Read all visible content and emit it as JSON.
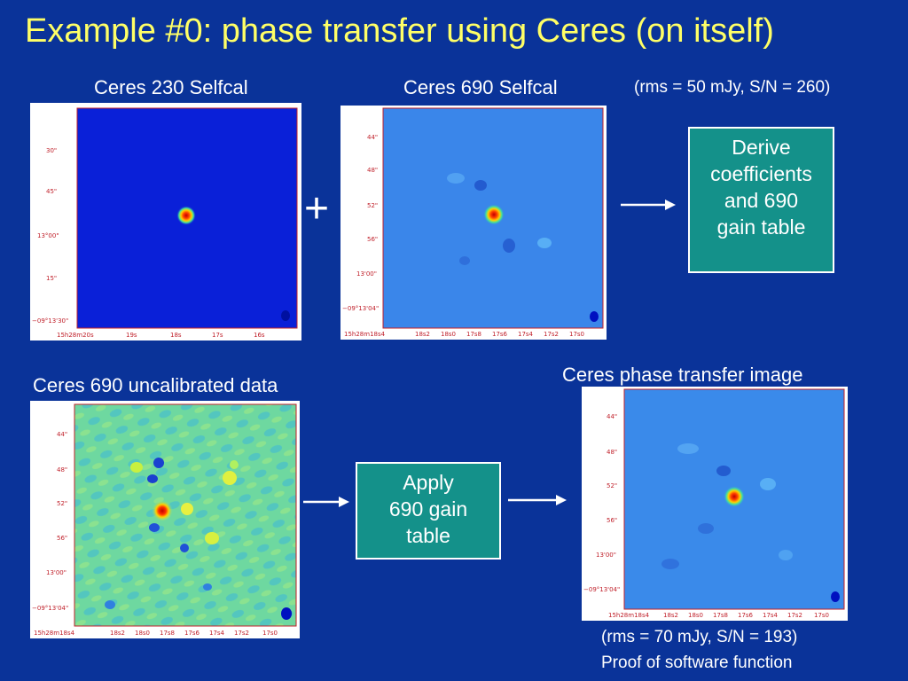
{
  "title": "Example #0:  phase transfer using Ceres (on itself)",
  "labels": {
    "ceres230": "Ceres 230 Selfcal",
    "ceres690": "Ceres 690 Selfcal",
    "uncal": "Ceres 690 uncalibrated data",
    "transfer": "Ceres phase transfer image"
  },
  "notes": {
    "rms_top": "(rms = 50 mJy, S/N = 260)",
    "rms_bottom": "(rms = 70 mJy, S/N = 193)",
    "proof": "Proof of software function"
  },
  "plus": "+",
  "boxes": {
    "derive": [
      "Derive",
      "coefficients",
      "and 690",
      "gain table"
    ],
    "apply": [
      "Apply",
      "690 gain",
      "table"
    ]
  },
  "axes": {
    "panel1": {
      "y": [
        "30\"",
        "45\"",
        "13°00\"",
        "15\"",
        "−09°13'30\""
      ],
      "x": [
        "15h28m20s",
        "19s",
        "18s",
        "17s",
        "16s"
      ]
    },
    "panel2": {
      "y": [
        "44\"",
        "48\"",
        "52\"",
        "56\"",
        "13'00\"",
        "−09°13'04\""
      ],
      "x": [
        "15h28m18s4",
        "18s2",
        "18s0",
        "17s8",
        "17s6",
        "17s4",
        "17s2",
        "17s0"
      ]
    },
    "panel3": {
      "y": [
        "44\"",
        "48\"",
        "52\"",
        "56\"",
        "13'00\"",
        "−09°13'04\""
      ],
      "x": [
        "15h28m18s4",
        "18s2",
        "18s0",
        "17s8",
        "17s6",
        "17s4",
        "17s2",
        "17s0"
      ]
    },
    "panel4": {
      "y": [
        "44\"",
        "48\"",
        "52\"",
        "56\"",
        "13'00\"",
        "−09°13'04\""
      ],
      "x": [
        "15h28m18s4",
        "18s2",
        "18s0",
        "17s8",
        "17s6",
        "17s4",
        "17s2",
        "17s0"
      ]
    }
  },
  "colors": {
    "background": "#0a3399",
    "title": "#ffff66",
    "box": "#14918a",
    "axis_text": "#c0202a"
  }
}
